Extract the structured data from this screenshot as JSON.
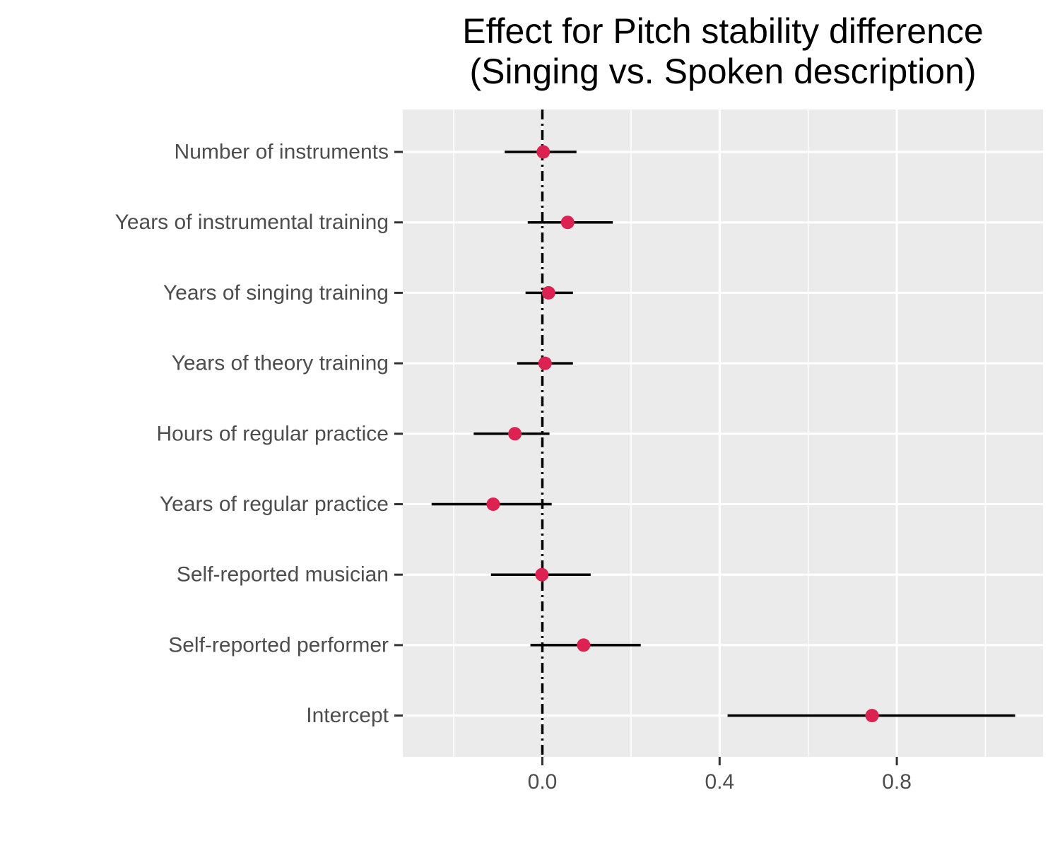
{
  "chart_data": {
    "type": "scatter",
    "title_lines": [
      "Effect for Pitch stability difference",
      "(Singing vs. Spoken description)"
    ],
    "xlabel": "",
    "ylabel": "",
    "xlim": [
      -0.315,
      1.13
    ],
    "x_ticks": [
      0.0,
      0.4,
      0.8
    ],
    "x_tick_labels": [
      "0.0",
      "0.4",
      "0.8"
    ],
    "x_minor_ticks": [
      -0.2,
      0.2,
      0.6,
      1.0
    ],
    "reference_line": {
      "x": 0.0,
      "style": "dot-dash"
    },
    "grid": true,
    "categories": [
      "Number of instruments",
      "Years of instrumental training",
      "Years of singing training",
      "Years of theory training",
      "Hours of regular practice",
      "Years of regular practice",
      "Self-reported musician",
      "Self-reported performer",
      "Intercept"
    ],
    "estimates": [
      0.002,
      0.057,
      0.014,
      0.006,
      -0.062,
      -0.111,
      -0.001,
      0.093,
      0.744
    ],
    "ci_lower": [
      -0.085,
      -0.033,
      -0.038,
      -0.057,
      -0.155,
      -0.25,
      -0.116,
      -0.027,
      0.418
    ],
    "ci_upper": [
      0.077,
      0.159,
      0.069,
      0.069,
      0.016,
      0.021,
      0.109,
      0.222,
      1.067
    ],
    "colors": {
      "point": "#dc2251",
      "interval": "#000000",
      "panel_background": "#ebebeb",
      "grid": "#ffffff",
      "reference_line": "#000000"
    }
  }
}
